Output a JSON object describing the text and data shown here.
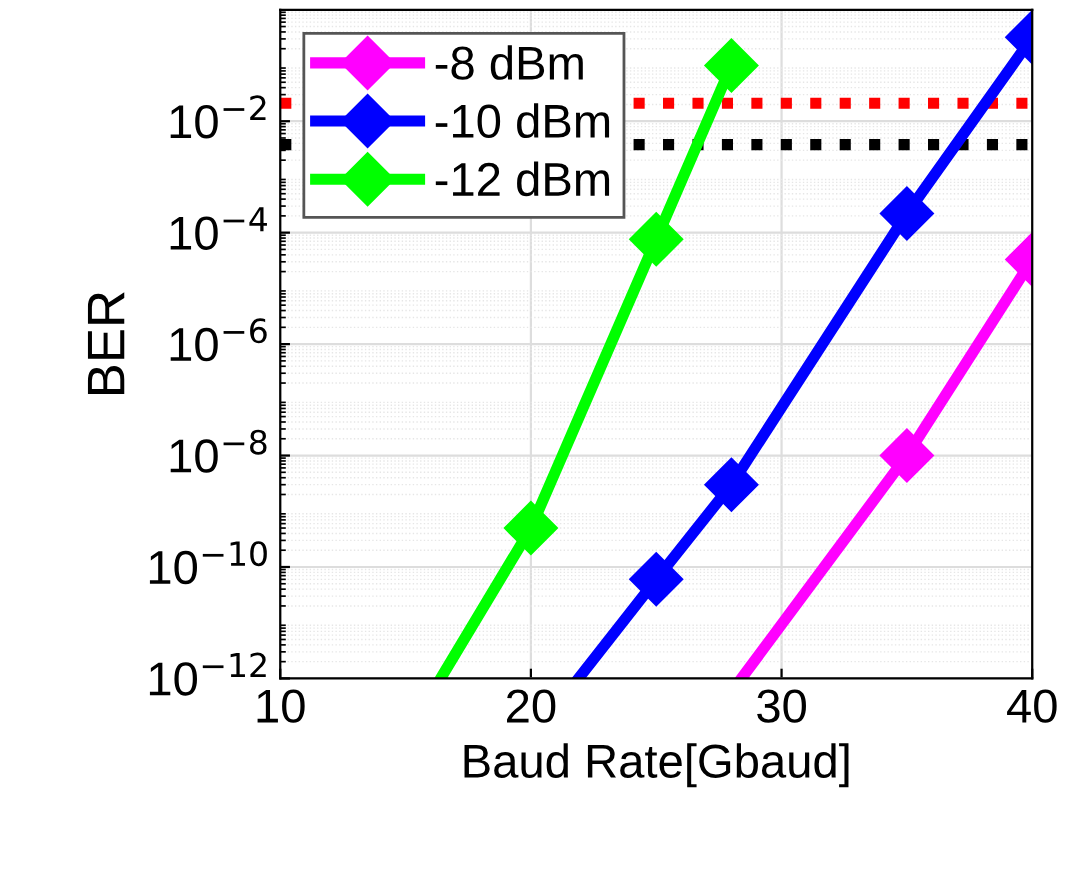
{
  "chart_data": {
    "type": "line",
    "xlabel": "Baud Rate[Gbaud]",
    "ylabel": "BER",
    "series": [
      {
        "name": "-8 dBm",
        "color": "#ff00ff",
        "x": [
          28.4,
          35,
          40
        ],
        "values": [
          1e-12,
          1e-08,
          3.3e-05
        ]
      },
      {
        "name": "-10 dBm",
        "color": "#0000ff",
        "x": [
          21.9,
          25,
          28,
          35,
          40
        ],
        "values": [
          1e-12,
          6e-11,
          3e-09,
          0.00022,
          0.32
        ]
      },
      {
        "name": "-12 dBm",
        "color": "#00ff00",
        "x": [
          16.4,
          20,
          25,
          28
        ],
        "values": [
          1e-12,
          5e-10,
          7.6e-05,
          0.1
        ]
      }
    ],
    "xlim": [
      10,
      40
    ],
    "xticks": [
      10,
      20,
      30,
      40
    ],
    "ylim": [
      1e-12,
      1
    ],
    "log": "y",
    "yticks": [
      {
        "value": 1e-12,
        "label": "10$^{−12}$"
      },
      {
        "value": 1e-10,
        "label": "10$^{−10}$"
      },
      {
        "value": 1e-08,
        "label": "10$^{−8}$"
      },
      {
        "value": 1e-06,
        "label": "10$^{−6}$"
      },
      {
        "value": 0.0001,
        "label": "10$^{−4}$"
      },
      {
        "value": 0.01,
        "label": "10$^{−2}$"
      }
    ],
    "ref_lines": [
      {
        "axis": "y",
        "value": 0.021,
        "color": "#ff0000",
        "line_style": "dotted"
      },
      {
        "axis": "y",
        "value": 0.0038,
        "color": "#000000",
        "line_style": "dotted"
      }
    ],
    "grid": true,
    "legend": "top left",
    "marker": "diamond",
    "line_style": "solid"
  }
}
